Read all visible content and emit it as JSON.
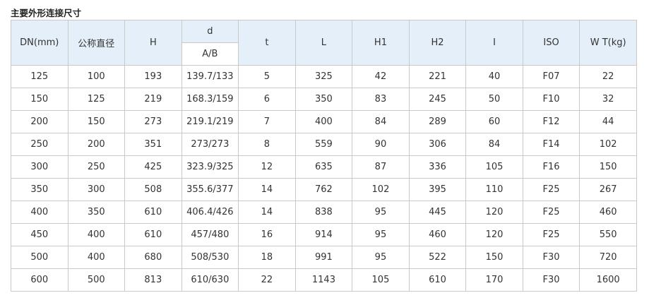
{
  "title": "主要外形连接尺寸",
  "table": {
    "headers": [
      "DN(mm)",
      "公称直径",
      "H",
      "d",
      "t",
      "L",
      "H1",
      "H2",
      "I",
      "ISO",
      "W T(kg)"
    ],
    "d_subheader": "A/B",
    "rows": [
      [
        "125",
        "100",
        "193",
        "139.7/133",
        "5",
        "325",
        "42",
        "221",
        "40",
        "F07",
        "22"
      ],
      [
        "150",
        "125",
        "219",
        "168.3/159",
        "6",
        "350",
        "83",
        "245",
        "50",
        "F10",
        "32"
      ],
      [
        "200",
        "150",
        "273",
        "219.1/219",
        "7",
        "400",
        "84",
        "289",
        "60",
        "F12",
        "44"
      ],
      [
        "250",
        "200",
        "351",
        "273/273",
        "8",
        "559",
        "90",
        "306",
        "84",
        "F14",
        "102"
      ],
      [
        "300",
        "250",
        "425",
        "323.9/325",
        "12",
        "635",
        "87",
        "336",
        "105",
        "F16",
        "150"
      ],
      [
        "350",
        "300",
        "508",
        "355.6/377",
        "14",
        "762",
        "102",
        "395",
        "110",
        "F25",
        "267"
      ],
      [
        "400",
        "350",
        "610",
        "406.4/426",
        "14",
        "838",
        "95",
        "445",
        "120",
        "F25",
        "460"
      ],
      [
        "450",
        "400",
        "610",
        "457/480",
        "16",
        "914",
        "95",
        "460",
        "120",
        "F25",
        "550"
      ],
      [
        "500",
        "400",
        "680",
        "508/530",
        "18",
        "991",
        "95",
        "522",
        "150",
        "F30",
        "720"
      ],
      [
        "600",
        "500",
        "813",
        "610/630",
        "22",
        "1143",
        "105",
        "610",
        "170",
        "F30",
        "1600"
      ]
    ]
  }
}
